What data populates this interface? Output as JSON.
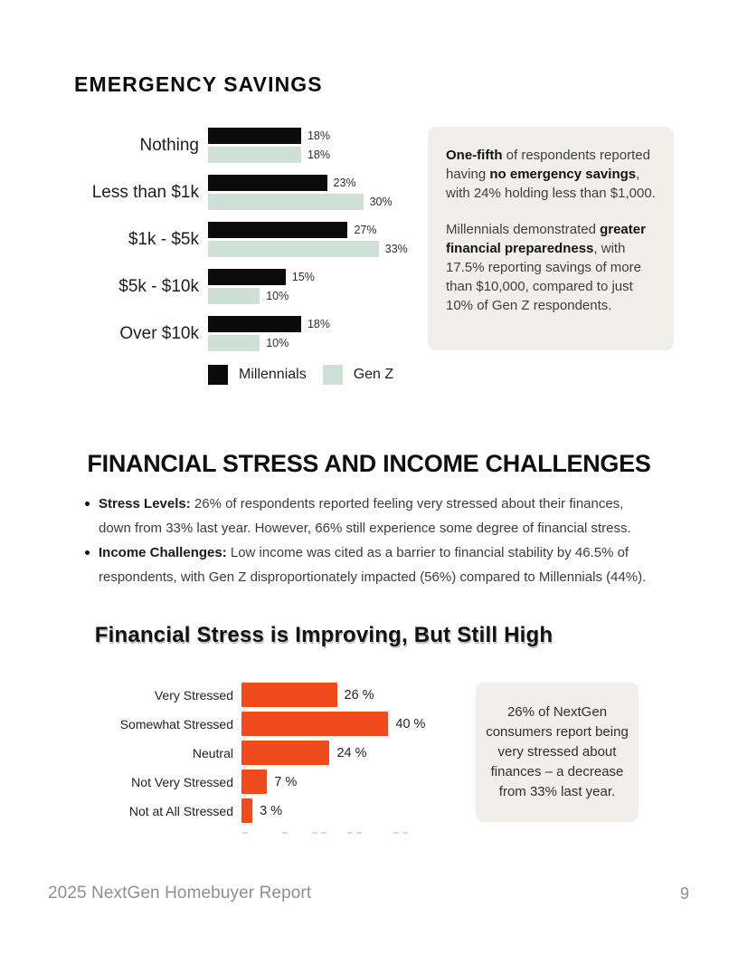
{
  "emergency_section": {
    "heading": "EMERGENCY SAVINGS",
    "callout_paragraphs": [
      [
        {
          "t": "One-fifth",
          "b": true
        },
        {
          "t": " of respondents reported having ",
          "b": false
        },
        {
          "t": "no emergency savings",
          "b": true
        },
        {
          "t": ", with 24% holding less than $1,000.",
          "b": false
        }
      ],
      [
        {
          "t": "Millennials demonstrated ",
          "b": false
        },
        {
          "t": "greater financial preparedness",
          "b": true
        },
        {
          "t": ", with 17.5% reporting savings of more than $10,000, compared to just 10% of Gen Z respondents.",
          "b": false
        }
      ]
    ]
  },
  "stress_section": {
    "heading": "FINANCIAL STRESS AND INCOME CHALLENGES",
    "bullets": [
      [
        {
          "t": "Stress Levels:",
          "b": true
        },
        {
          "t": " 26% of respondents reported feeling very stressed about their finances, down from 33% last year. However, 66% still experience some degree of financial stress.",
          "b": false
        }
      ],
      [
        {
          "t": "Income Challenges:",
          "b": true
        },
        {
          "t": " Low income was cited as a barrier to financial stability by 46.5% of respondents, with Gen Z disproportionately impacted (56%) compared to Millennials (44%).",
          "b": false
        }
      ]
    ],
    "chart_title": "Financial Stress is Improving, But Still High",
    "callout_text": "26% of NextGen consumers report being very stressed about finances – a decrease from 33% last year."
  },
  "footer": {
    "report_title": "2025 NextGen Homebuyer Report",
    "page_number": "9"
  },
  "colors": {
    "millennials": "#0b0b0b",
    "gen_z": "#cfe1d6",
    "stress_bar": "#f04b1d",
    "callout_bg": "#f0efe9"
  },
  "chart_data": [
    {
      "type": "bar",
      "orientation": "horizontal",
      "title": "EMERGENCY SAVINGS",
      "categories": [
        "Nothing",
        "Less than $1k",
        "$1k - $5k",
        "$5k - $10k",
        "Over $10k"
      ],
      "series": [
        {
          "name": "Millennials",
          "color": "#0b0b0b",
          "values": [
            18,
            23,
            27,
            15,
            18
          ]
        },
        {
          "name": "Gen Z",
          "color": "#cfe1d6",
          "values": [
            18,
            30,
            33,
            10,
            10
          ]
        }
      ],
      "value_format": "{v}%",
      "xlim": [
        0,
        35
      ],
      "grid": false,
      "legend_position": "bottom"
    },
    {
      "type": "bar",
      "orientation": "horizontal",
      "title": "Financial Stress is Improving, But Still High",
      "categories": [
        "Very Stressed",
        "Somewhat Stressed",
        "Neutral",
        "Not Very Stressed",
        "Not at All Stressed"
      ],
      "values": [
        26,
        40,
        24,
        7,
        3
      ],
      "color": "#f04b1d",
      "value_format": "{v} %",
      "xlim": [
        0,
        45
      ],
      "grid": false,
      "legend_position": "none"
    }
  ]
}
